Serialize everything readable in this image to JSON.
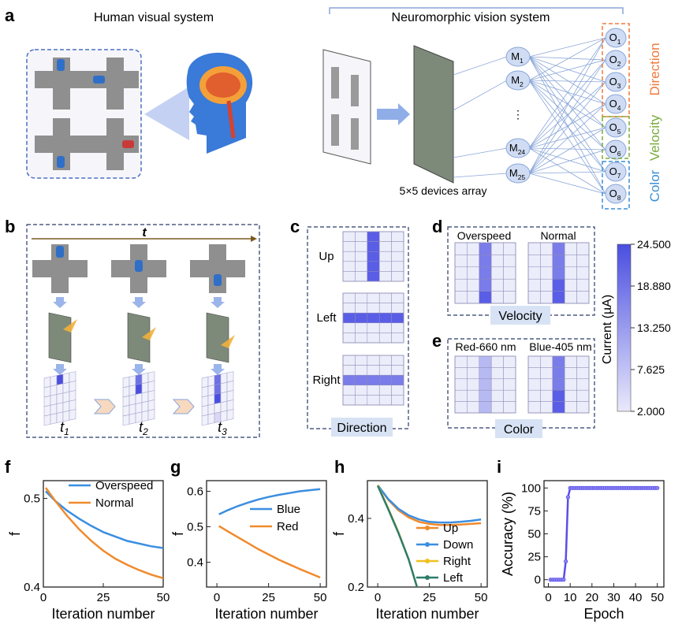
{
  "panel_letters": [
    "a",
    "b",
    "c",
    "d",
    "e",
    "f",
    "g",
    "h",
    "i"
  ],
  "panel_a": {
    "left_title": "Human visual system",
    "right_title": "Neuromorphic vision system",
    "array_label": "5×5 devices array",
    "middle_nodes": [
      "M1",
      "M2",
      "M24",
      "M25"
    ],
    "output_nodes": [
      "O1",
      "O2",
      "O3",
      "O4",
      "O5",
      "O6",
      "O7",
      "O8"
    ],
    "groups": [
      {
        "label": "Direction",
        "color": "#f07a3c"
      },
      {
        "label": "Velocity",
        "color": "#7aab3a"
      },
      {
        "label": "Color",
        "color": "#3a8fd8"
      }
    ]
  },
  "panel_b": {
    "time_label": "t",
    "steps": [
      "t1",
      "t2",
      "t3"
    ]
  },
  "panel_c": {
    "caption": "Direction",
    "rows": [
      "Up",
      "Left",
      "Right"
    ]
  },
  "panel_d": {
    "caption": "Velocity",
    "labels": [
      "Overspeed",
      "Normal"
    ]
  },
  "panel_e": {
    "caption": "Color",
    "labels": [
      "Red-660 nm",
      "Blue-405 nm"
    ]
  },
  "colorbar": {
    "title": "Current (µA)",
    "ticks": [
      "24.500",
      "18.880",
      "13.250",
      "7.625",
      "2.000"
    ],
    "low_color": "#e9e9fb",
    "high_color": "#4a4ee0"
  },
  "chart_data": [
    {
      "id": "f",
      "type": "line",
      "ylabel": "f",
      "xlabel": "Iteration number",
      "xlim": [
        0,
        50
      ],
      "ylim": [
        0.4,
        0.52
      ],
      "xticks": [
        0,
        25,
        50
      ],
      "yticks": [
        0.4,
        0.5
      ],
      "ytick_labels": [
        "0.4",
        "0.5"
      ],
      "series": [
        {
          "name": "Overspeed",
          "color": "#3b8ee0",
          "x": [
            1,
            5,
            10,
            15,
            20,
            25,
            30,
            35,
            40,
            45,
            50
          ],
          "y": [
            0.508,
            0.497,
            0.486,
            0.477,
            0.469,
            0.462,
            0.457,
            0.452,
            0.449,
            0.446,
            0.444
          ]
        },
        {
          "name": "Normal",
          "color": "#f08a2c",
          "x": [
            1,
            5,
            10,
            15,
            20,
            25,
            30,
            35,
            40,
            45,
            50
          ],
          "y": [
            0.512,
            0.497,
            0.48,
            0.465,
            0.452,
            0.441,
            0.432,
            0.425,
            0.419,
            0.414,
            0.41
          ]
        }
      ]
    },
    {
      "id": "g",
      "type": "line",
      "ylabel": "f",
      "xlabel": "Iteration number",
      "xlim": [
        -5,
        53
      ],
      "ylim": [
        0.33,
        0.63
      ],
      "xticks": [
        0,
        25,
        50
      ],
      "yticks": [
        0.4,
        0.5,
        0.6
      ],
      "ytick_labels": [
        "0.4",
        "0.5",
        "0.6"
      ],
      "series": [
        {
          "name": "Blue",
          "color": "#3b8ee0",
          "x": [
            1,
            5,
            10,
            15,
            20,
            25,
            30,
            35,
            40,
            45,
            50
          ],
          "y": [
            0.535,
            0.546,
            0.558,
            0.568,
            0.577,
            0.584,
            0.59,
            0.595,
            0.6,
            0.603,
            0.606
          ]
        },
        {
          "name": "Red",
          "color": "#f08a2c",
          "x": [
            1,
            5,
            10,
            15,
            20,
            25,
            30,
            35,
            40,
            45,
            50
          ],
          "y": [
            0.502,
            0.488,
            0.471,
            0.454,
            0.437,
            0.422,
            0.407,
            0.394,
            0.381,
            0.369,
            0.357
          ]
        }
      ]
    },
    {
      "id": "h",
      "type": "line",
      "ylabel": "f",
      "xlabel": "Iteration number",
      "xlim": [
        -5,
        53
      ],
      "ylim": [
        0.2,
        0.51
      ],
      "xticks": [
        0,
        25,
        50
      ],
      "yticks": [
        0.2,
        0.4
      ],
      "ytick_labels": [
        "0.2",
        "0.4"
      ],
      "series": [
        {
          "name": "Up",
          "color": "#f08a2c",
          "x": [
            0,
            5,
            10,
            15,
            20,
            25,
            30,
            35,
            40,
            45,
            50
          ],
          "y": [
            0.497,
            0.455,
            0.424,
            0.403,
            0.39,
            0.384,
            0.381,
            0.381,
            0.382,
            0.384,
            0.386
          ]
        },
        {
          "name": "Down",
          "color": "#3b8ee0",
          "x": [
            0,
            5,
            10,
            15,
            20,
            25,
            30,
            35,
            40,
            45,
            50
          ],
          "y": [
            0.497,
            0.457,
            0.428,
            0.409,
            0.397,
            0.39,
            0.388,
            0.388,
            0.39,
            0.393,
            0.397
          ]
        },
        {
          "name": "Right",
          "color": "#f0c020",
          "x": [
            0,
            5,
            10,
            15,
            19
          ],
          "y": [
            0.497,
            0.43,
            0.36,
            0.28,
            0.2
          ]
        },
        {
          "name": "Left",
          "color": "#2e7d6b",
          "x": [
            0,
            5,
            10,
            15,
            19
          ],
          "y": [
            0.495,
            0.428,
            0.358,
            0.28,
            0.2
          ]
        }
      ]
    },
    {
      "id": "i",
      "type": "line",
      "ylabel": "Accuracy (%)",
      "xlabel": "Epoch",
      "xlim": [
        -2,
        53
      ],
      "ylim": [
        -8,
        108
      ],
      "xticks": [
        0,
        10,
        20,
        30,
        40,
        50
      ],
      "yticks": [
        0,
        25,
        50,
        75,
        100
      ],
      "ytick_labels": [
        "0",
        "25",
        "50",
        "75",
        "100"
      ],
      "series": [
        {
          "name": "Accuracy",
          "color": "#5a4ee8",
          "x": [
            1,
            2,
            3,
            4,
            5,
            6,
            7,
            8,
            9,
            10,
            11,
            12,
            13,
            14,
            15,
            16,
            17,
            18,
            19,
            20,
            21,
            22,
            23,
            24,
            25,
            26,
            27,
            28,
            29,
            30,
            31,
            32,
            33,
            34,
            35,
            36,
            37,
            38,
            39,
            40,
            41,
            42,
            43,
            44,
            45,
            46,
            47,
            48,
            49,
            50
          ],
          "y": [
            0,
            0,
            0,
            0,
            0,
            0,
            0,
            20,
            90,
            100,
            100,
            100,
            100,
            100,
            100,
            100,
            100,
            100,
            100,
            100,
            100,
            100,
            100,
            100,
            100,
            100,
            100,
            100,
            100,
            100,
            100,
            100,
            100,
            100,
            100,
            100,
            100,
            100,
            100,
            100,
            100,
            100,
            100,
            100,
            100,
            100,
            100,
            100,
            100,
            100
          ]
        }
      ]
    }
  ]
}
